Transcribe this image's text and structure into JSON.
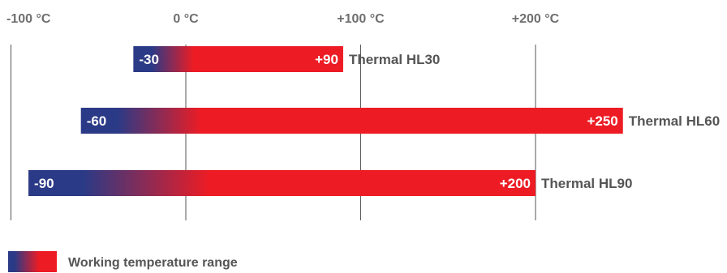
{
  "chart_data": {
    "type": "bar",
    "orientation": "horizontal",
    "x_unit": "°C",
    "x_ticks": [
      {
        "value": -100,
        "label": "-100 °C"
      },
      {
        "value": 0,
        "label": "0 °C"
      },
      {
        "value": 100,
        "label": "+100 °C"
      },
      {
        "value": 200,
        "label": "+200 °C"
      }
    ],
    "bars": [
      {
        "name": "Thermal HL30",
        "min": -30,
        "max": 90,
        "min_label": "-30",
        "max_label": "+90"
      },
      {
        "name": "Thermal HL60",
        "min": -60,
        "max": 250,
        "min_label": "-60",
        "max_label": "+250"
      },
      {
        "name": "Thermal HL90",
        "min": -90,
        "max": 200,
        "min_label": "-90",
        "max_label": "+200"
      }
    ],
    "legend": {
      "label": "Working temperature range",
      "placement": "bottom-left"
    },
    "colors": {
      "cold": "#2b3a86",
      "hot": "#ed1c24",
      "gridline": "#555555",
      "tick_text": "#6f6f6f",
      "label_text": "#555555"
    }
  }
}
